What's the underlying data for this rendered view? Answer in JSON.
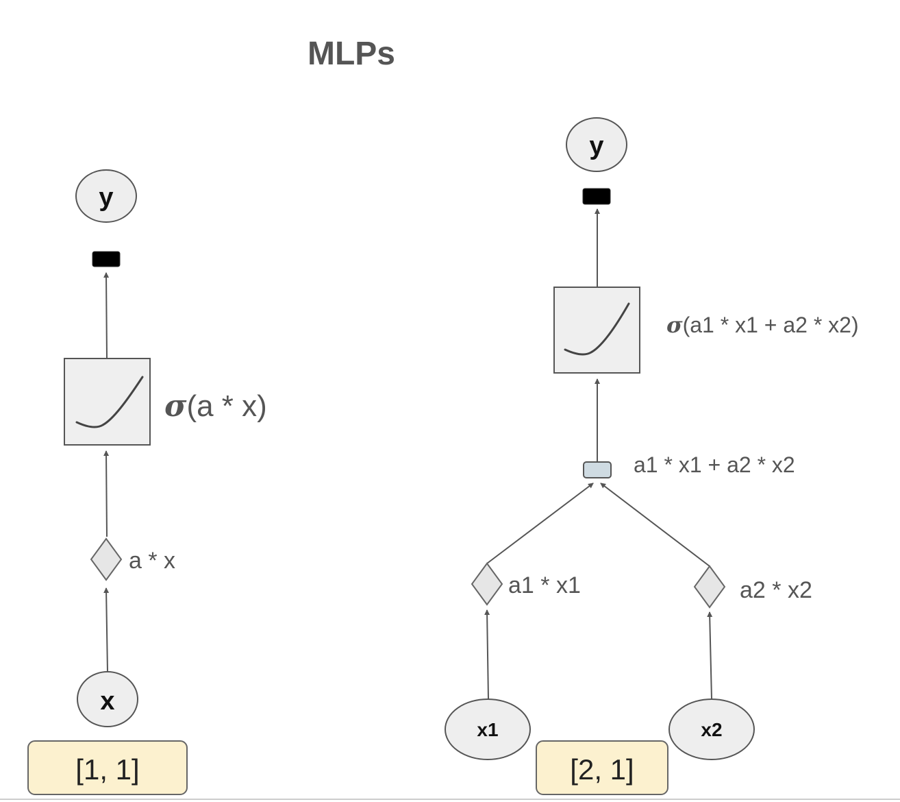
{
  "title": "MLPs",
  "sigma_symbol": "σ",
  "left": {
    "output_node": "y",
    "activation_label": "(a * x)",
    "operation_label": "a * x",
    "input_node": "x",
    "shape": "[1, 1]"
  },
  "right": {
    "output_node": "y",
    "activation_label": "(a1 * x1 + a2 * x2)",
    "sum_label": "a1 * x1 + a2 * x2",
    "operation_1_label": "a1 * x1",
    "operation_2_label": "a2 * x2",
    "input_node_1": "x1",
    "input_node_2": "x2",
    "shape": "[2, 1]"
  }
}
